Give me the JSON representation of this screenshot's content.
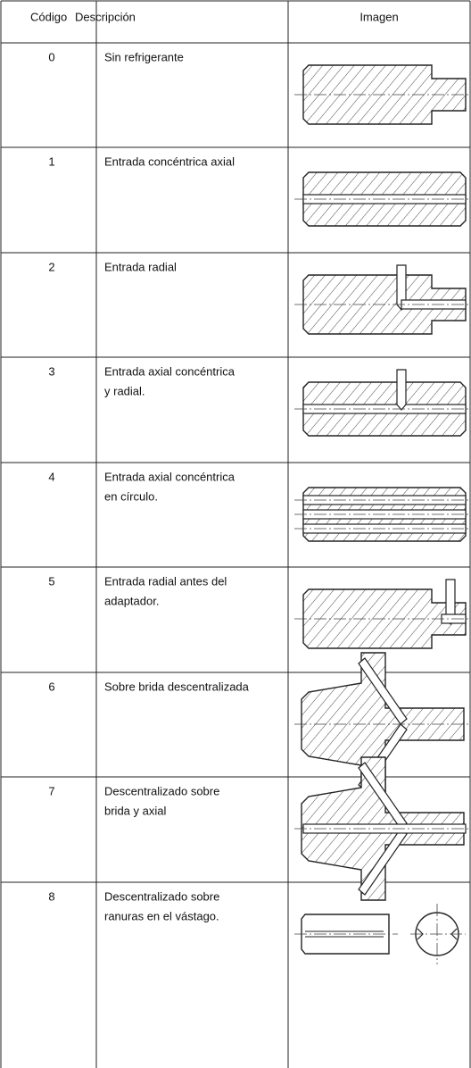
{
  "header": {
    "code": "Código",
    "description": "Descripción",
    "image": "Imagen"
  },
  "rows": [
    {
      "code": "0",
      "description": [
        "Sin refrigerante"
      ]
    },
    {
      "code": "1",
      "description": [
        "Entrada concéntrica axial"
      ]
    },
    {
      "code": "2",
      "description": [
        "Entrada radial"
      ]
    },
    {
      "code": "3",
      "description": [
        "Entrada axial concéntrica",
        "y radial."
      ]
    },
    {
      "code": "4",
      "description": [
        "Entrada axial concéntrica",
        "en círculo."
      ]
    },
    {
      "code": "5",
      "description": [
        "Entrada radial antes del",
        "adaptador."
      ]
    },
    {
      "code": "6",
      "description": [
        "Sobre brida descentralizada"
      ]
    },
    {
      "code": "7",
      "description": [
        "Descentralizado sobre",
        "brida y axial"
      ]
    },
    {
      "code": "8",
      "description": [
        "Descentralizado sobre",
        "ranuras en el vástago."
      ]
    }
  ]
}
